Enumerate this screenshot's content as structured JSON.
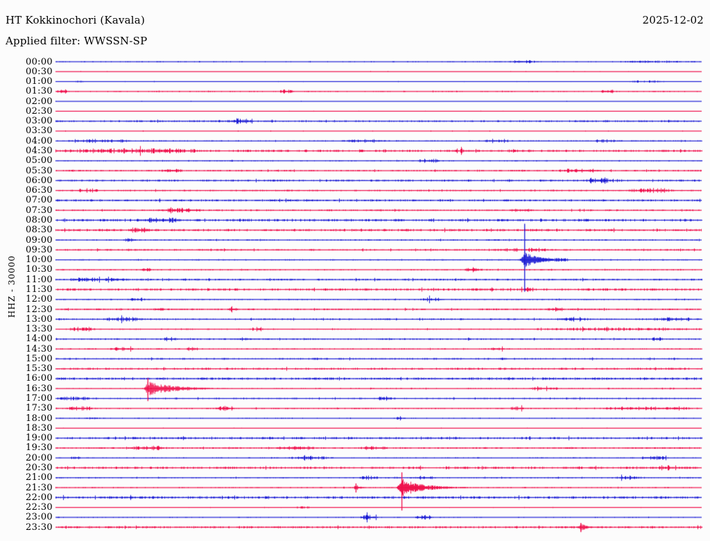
{
  "header": {
    "station": "HT Kokkinochori (Kavala)",
    "date": "2025-12-02",
    "filter_label": "Applied filter: WWSSN-SP"
  },
  "axis": {
    "scale_label": "HHZ - 30000"
  },
  "colors": {
    "blue": "#1b1bd4",
    "red": "#ef0d4a"
  },
  "chart_data": {
    "type": "line",
    "subtype": "helicorder-seismogram",
    "title": "HT Kokkinochori (Kavala)",
    "subtitle": "Applied filter: WWSSN-SP",
    "date": "2025-12-02",
    "ylabel": "HHZ - 30000",
    "minutes_per_row": 30,
    "x_start": "00:00",
    "x_end": "24:00",
    "rows": [
      {
        "time": "00:00",
        "color": "blue",
        "base": 0.6,
        "bursts": [
          [
            0.7,
            0.745,
            2.0
          ],
          [
            0.86,
            0.99,
            1.0
          ]
        ]
      },
      {
        "time": "00:30",
        "color": "red",
        "base": 0.45,
        "bursts": []
      },
      {
        "time": "01:00",
        "color": "blue",
        "base": 0.45,
        "bursts": [
          [
            0.03,
            0.045,
            1.6
          ],
          [
            0.885,
            0.945,
            1.3
          ]
        ]
      },
      {
        "time": "01:30",
        "color": "red",
        "base": 0.7,
        "bursts": [
          [
            0.0,
            0.02,
            2.4
          ],
          [
            0.345,
            0.37,
            2.4
          ],
          [
            0.84,
            0.87,
            1.8
          ]
        ]
      },
      {
        "time": "02:00",
        "color": "blue",
        "base": 0.35,
        "bursts": []
      },
      {
        "time": "02:30",
        "color": "red",
        "base": 0.35,
        "bursts": []
      },
      {
        "time": "03:00",
        "color": "blue",
        "base": 1.3,
        "bursts": [
          [
            0.265,
            0.305,
            3.0
          ]
        ]
      },
      {
        "time": "03:30",
        "color": "red",
        "base": 0.45,
        "bursts": []
      },
      {
        "time": "04:00",
        "color": "blue",
        "base": 0.9,
        "bursts": [
          [
            0.02,
            0.12,
            1.9
          ],
          [
            0.44,
            0.52,
            1.6
          ],
          [
            0.66,
            0.7,
            1.7
          ],
          [
            0.83,
            0.87,
            1.7
          ]
        ]
      },
      {
        "time": "04:30",
        "color": "red",
        "base": 1.6,
        "bursts": [
          [
            0.0,
            0.24,
            2.2
          ],
          [
            0.61,
            0.64,
            1.8
          ],
          [
            0.7,
            0.72,
            1.8
          ]
        ]
      },
      {
        "time": "05:00",
        "color": "blue",
        "base": 0.7,
        "bursts": [
          [
            0.56,
            0.6,
            2.0
          ]
        ]
      },
      {
        "time": "05:30",
        "color": "red",
        "base": 1.1,
        "bursts": [
          [
            0.16,
            0.2,
            1.8
          ],
          [
            0.775,
            0.85,
            1.9
          ]
        ]
      },
      {
        "time": "06:00",
        "color": "blue",
        "base": 1.4,
        "bursts": [
          [
            0.82,
            0.86,
            3.4
          ]
        ]
      },
      {
        "time": "06:30",
        "color": "red",
        "base": 1.1,
        "bursts": [
          [
            0.025,
            0.07,
            1.8
          ],
          [
            0.885,
            0.955,
            2.8
          ]
        ]
      },
      {
        "time": "07:00",
        "color": "blue",
        "base": 1.5,
        "bursts": []
      },
      {
        "time": "07:30",
        "color": "red",
        "base": 1.1,
        "bursts": [
          [
            0.165,
            0.225,
            2.4
          ],
          [
            0.7,
            0.735,
            1.9
          ]
        ]
      },
      {
        "time": "08:00",
        "color": "blue",
        "base": 1.8,
        "bursts": [
          [
            0.125,
            0.195,
            2.4
          ]
        ]
      },
      {
        "time": "08:30",
        "color": "red",
        "base": 1.7,
        "bursts": [
          [
            0.11,
            0.15,
            2.8
          ]
        ]
      },
      {
        "time": "09:00",
        "color": "blue",
        "base": 0.9,
        "bursts": [
          [
            0.105,
            0.125,
            1.9
          ]
        ]
      },
      {
        "time": "09:30",
        "color": "red",
        "base": 1.2,
        "bursts": [
          [
            0.66,
            0.78,
            1.6
          ]
        ]
      },
      {
        "time": "10:00",
        "color": "blue",
        "base": 0.9,
        "bursts": [
          [
            0.74,
            0.8,
            2.2
          ]
        ]
      },
      {
        "time": "10:30",
        "color": "red",
        "base": 0.8,
        "bursts": [
          [
            0.13,
            0.15,
            1.9
          ],
          [
            0.63,
            0.66,
            2.8
          ]
        ]
      },
      {
        "time": "11:00",
        "color": "blue",
        "base": 1.3,
        "bursts": [
          [
            0.01,
            0.12,
            1.7
          ]
        ]
      },
      {
        "time": "11:30",
        "color": "red",
        "base": 1.7,
        "bursts": [
          [
            0.715,
            0.745,
            2.4
          ]
        ]
      },
      {
        "time": "12:00",
        "color": "blue",
        "base": 0.9,
        "bursts": [
          [
            0.11,
            0.14,
            1.9
          ],
          [
            0.565,
            0.605,
            2.4
          ]
        ]
      },
      {
        "time": "12:30",
        "color": "red",
        "base": 1.2,
        "bursts": [
          [
            0.15,
            0.17,
            1.9
          ],
          [
            0.265,
            0.285,
            1.9
          ],
          [
            0.76,
            0.79,
            1.9
          ]
        ]
      },
      {
        "time": "13:00",
        "color": "blue",
        "base": 1.2,
        "bursts": [
          [
            0.07,
            0.14,
            1.9
          ],
          [
            0.775,
            0.825,
            2.4
          ],
          [
            0.93,
            0.99,
            1.9
          ]
        ]
      },
      {
        "time": "13:30",
        "color": "red",
        "base": 0.9,
        "bursts": [
          [
            0.015,
            0.065,
            2.3
          ],
          [
            0.3,
            0.32,
            1.8
          ],
          [
            0.74,
            1.0,
            1.6
          ]
        ]
      },
      {
        "time": "14:00",
        "color": "blue",
        "base": 1.1,
        "bursts": [
          [
            0.165,
            0.19,
            1.9
          ],
          [
            0.285,
            0.3,
            1.9
          ],
          [
            0.92,
            0.94,
            1.9
          ]
        ]
      },
      {
        "time": "14:30",
        "color": "red",
        "base": 0.8,
        "bursts": [
          [
            0.08,
            0.13,
            1.9
          ],
          [
            0.2,
            0.225,
            1.9
          ],
          [
            0.67,
            0.7,
            1.7
          ]
        ]
      },
      {
        "time": "15:00",
        "color": "blue",
        "base": 1.2,
        "bursts": []
      },
      {
        "time": "15:30",
        "color": "red",
        "base": 1.5,
        "bursts": []
      },
      {
        "time": "16:00",
        "color": "blue",
        "base": 1.7,
        "bursts": []
      },
      {
        "time": "16:30",
        "color": "red",
        "base": 0.7,
        "bursts": [
          [
            0.73,
            0.785,
            1.9
          ]
        ]
      },
      {
        "time": "17:00",
        "color": "blue",
        "base": 1.1,
        "bursts": [
          [
            0.0,
            0.055,
            1.7
          ],
          [
            0.495,
            0.525,
            2.1
          ]
        ]
      },
      {
        "time": "17:30",
        "color": "red",
        "base": 0.9,
        "bursts": [
          [
            0.015,
            0.065,
            2.1
          ],
          [
            0.245,
            0.275,
            2.8
          ],
          [
            0.7,
            0.73,
            1.9
          ],
          [
            0.835,
            1.0,
            1.7
          ]
        ]
      },
      {
        "time": "18:00",
        "color": "blue",
        "base": 0.6,
        "bursts": [
          [
            0.045,
            0.075,
            1.4
          ],
          [
            0.52,
            0.545,
            1.4
          ]
        ]
      },
      {
        "time": "18:30",
        "color": "red",
        "base": 0.45,
        "bursts": []
      },
      {
        "time": "19:00",
        "color": "blue",
        "base": 1.6,
        "bursts": []
      },
      {
        "time": "19:30",
        "color": "red",
        "base": 1.1,
        "bursts": [
          [
            0.11,
            0.175,
            1.7
          ],
          [
            0.33,
            0.41,
            1.7
          ],
          [
            0.47,
            0.515,
            1.7
          ]
        ]
      },
      {
        "time": "20:00",
        "color": "blue",
        "base": 0.7,
        "bursts": [
          [
            0.02,
            0.04,
            1.4
          ],
          [
            0.36,
            0.43,
            1.7
          ],
          [
            0.9,
            0.955,
            1.9
          ]
        ]
      },
      {
        "time": "20:30",
        "color": "red",
        "base": 1.7,
        "bursts": [
          [
            0.93,
            0.96,
            2.4
          ]
        ]
      },
      {
        "time": "21:00",
        "color": "blue",
        "base": 0.8,
        "bursts": [
          [
            0.47,
            0.5,
            2.3
          ],
          [
            0.555,
            0.59,
            1.9
          ],
          [
            0.865,
            0.905,
            2.3
          ]
        ]
      },
      {
        "time": "21:30",
        "color": "red",
        "base": 0.7,
        "bursts": []
      },
      {
        "time": "22:00",
        "color": "blue",
        "base": 1.9,
        "bursts": []
      },
      {
        "time": "22:30",
        "color": "red",
        "base": 0.45,
        "bursts": [
          [
            0.37,
            0.4,
            1.5
          ]
        ]
      },
      {
        "time": "23:00",
        "color": "blue",
        "base": 0.6,
        "bursts": [
          [
            0.468,
            0.5,
            3.2
          ],
          [
            0.556,
            0.586,
            2.8
          ]
        ]
      },
      {
        "time": "23:30",
        "color": "red",
        "base": 1.5,
        "bursts": []
      }
    ],
    "events": [
      {
        "row": 20,
        "time": "10:00",
        "f": 0.726,
        "amp": 13,
        "spike_up": 52,
        "spike_down": 46,
        "attack": 9,
        "coda": 60
      },
      {
        "row": 33,
        "time": "16:30",
        "f": 0.143,
        "amp": 11,
        "spike_up": 15,
        "spike_down": 18,
        "attack": 7,
        "coda": 115
      },
      {
        "row": 43,
        "time": "21:30",
        "f": 0.465,
        "amp": 5,
        "spike_up": 6,
        "spike_down": 7,
        "attack": 5,
        "coda": 20
      },
      {
        "row": 43,
        "time": "21:30",
        "f": 0.536,
        "amp": 13,
        "spike_up": 22,
        "spike_down": 33,
        "attack": 9,
        "coda": 95
      },
      {
        "row": 47,
        "time": "23:30",
        "f": 0.813,
        "amp": 6,
        "spike_up": 6,
        "spike_down": 7,
        "attack": 5,
        "coda": 28
      }
    ]
  }
}
